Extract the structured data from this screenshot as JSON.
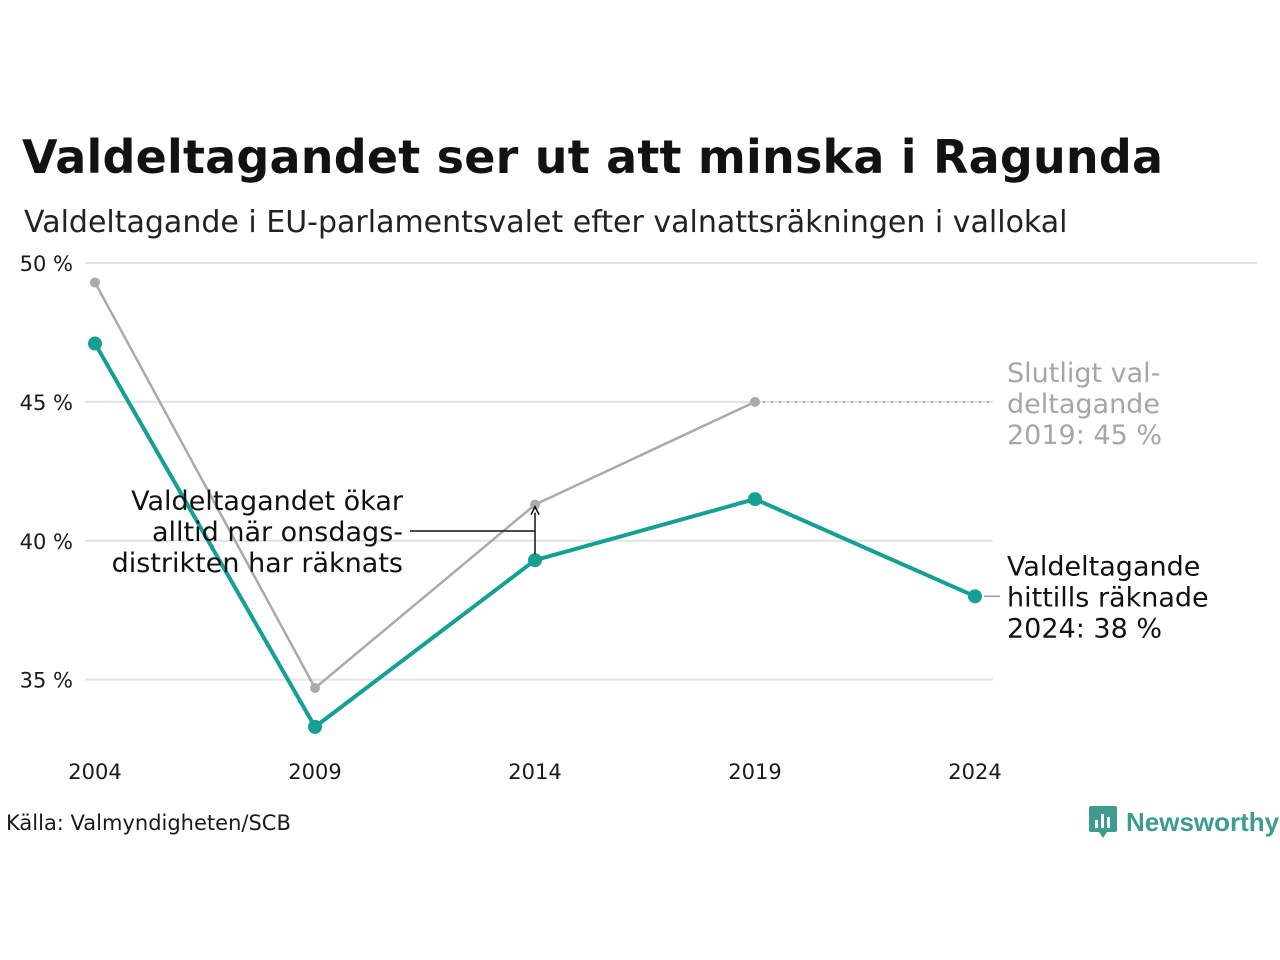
{
  "title": "Valdeltagandet ser ut att minska i Ragunda",
  "subtitle": "Valdeltagande i EU-parlamentsvalet efter valnattsräkningen i vallokal",
  "source": "Källa: Valmyndigheten/SCB",
  "brand": "Newsworthy",
  "colors": {
    "preliminary": "#14a093",
    "final": "#aaaaaa",
    "grid": "#e3e3e3",
    "brand": "#3e9b8f"
  },
  "chart_data": {
    "type": "line",
    "x": [
      "2004",
      "2009",
      "2014",
      "2019",
      "2024"
    ],
    "ylim": [
      33,
      50
    ],
    "yticks": [
      35,
      40,
      45,
      50
    ],
    "ytick_labels": [
      "35 %",
      "40 %",
      "45 %",
      "50 %"
    ],
    "grid": true,
    "series": [
      {
        "key": "final",
        "values": [
          49.3,
          34.7,
          41.3,
          45.0,
          null
        ]
      },
      {
        "key": "preliminary",
        "values": [
          47.1,
          33.3,
          39.3,
          41.5,
          38.0
        ]
      }
    ],
    "annotations": {
      "final_end": [
        "Slutligt val-",
        "deltagande",
        "2019: 45 %"
      ],
      "preliminary_end": [
        "Valdeltagande",
        "hittills räknade",
        "2024: 38 %"
      ],
      "increase_note": [
        "Valdeltagandet ökar",
        "alltid när onsdags-",
        "distrikten har räknats"
      ]
    }
  }
}
